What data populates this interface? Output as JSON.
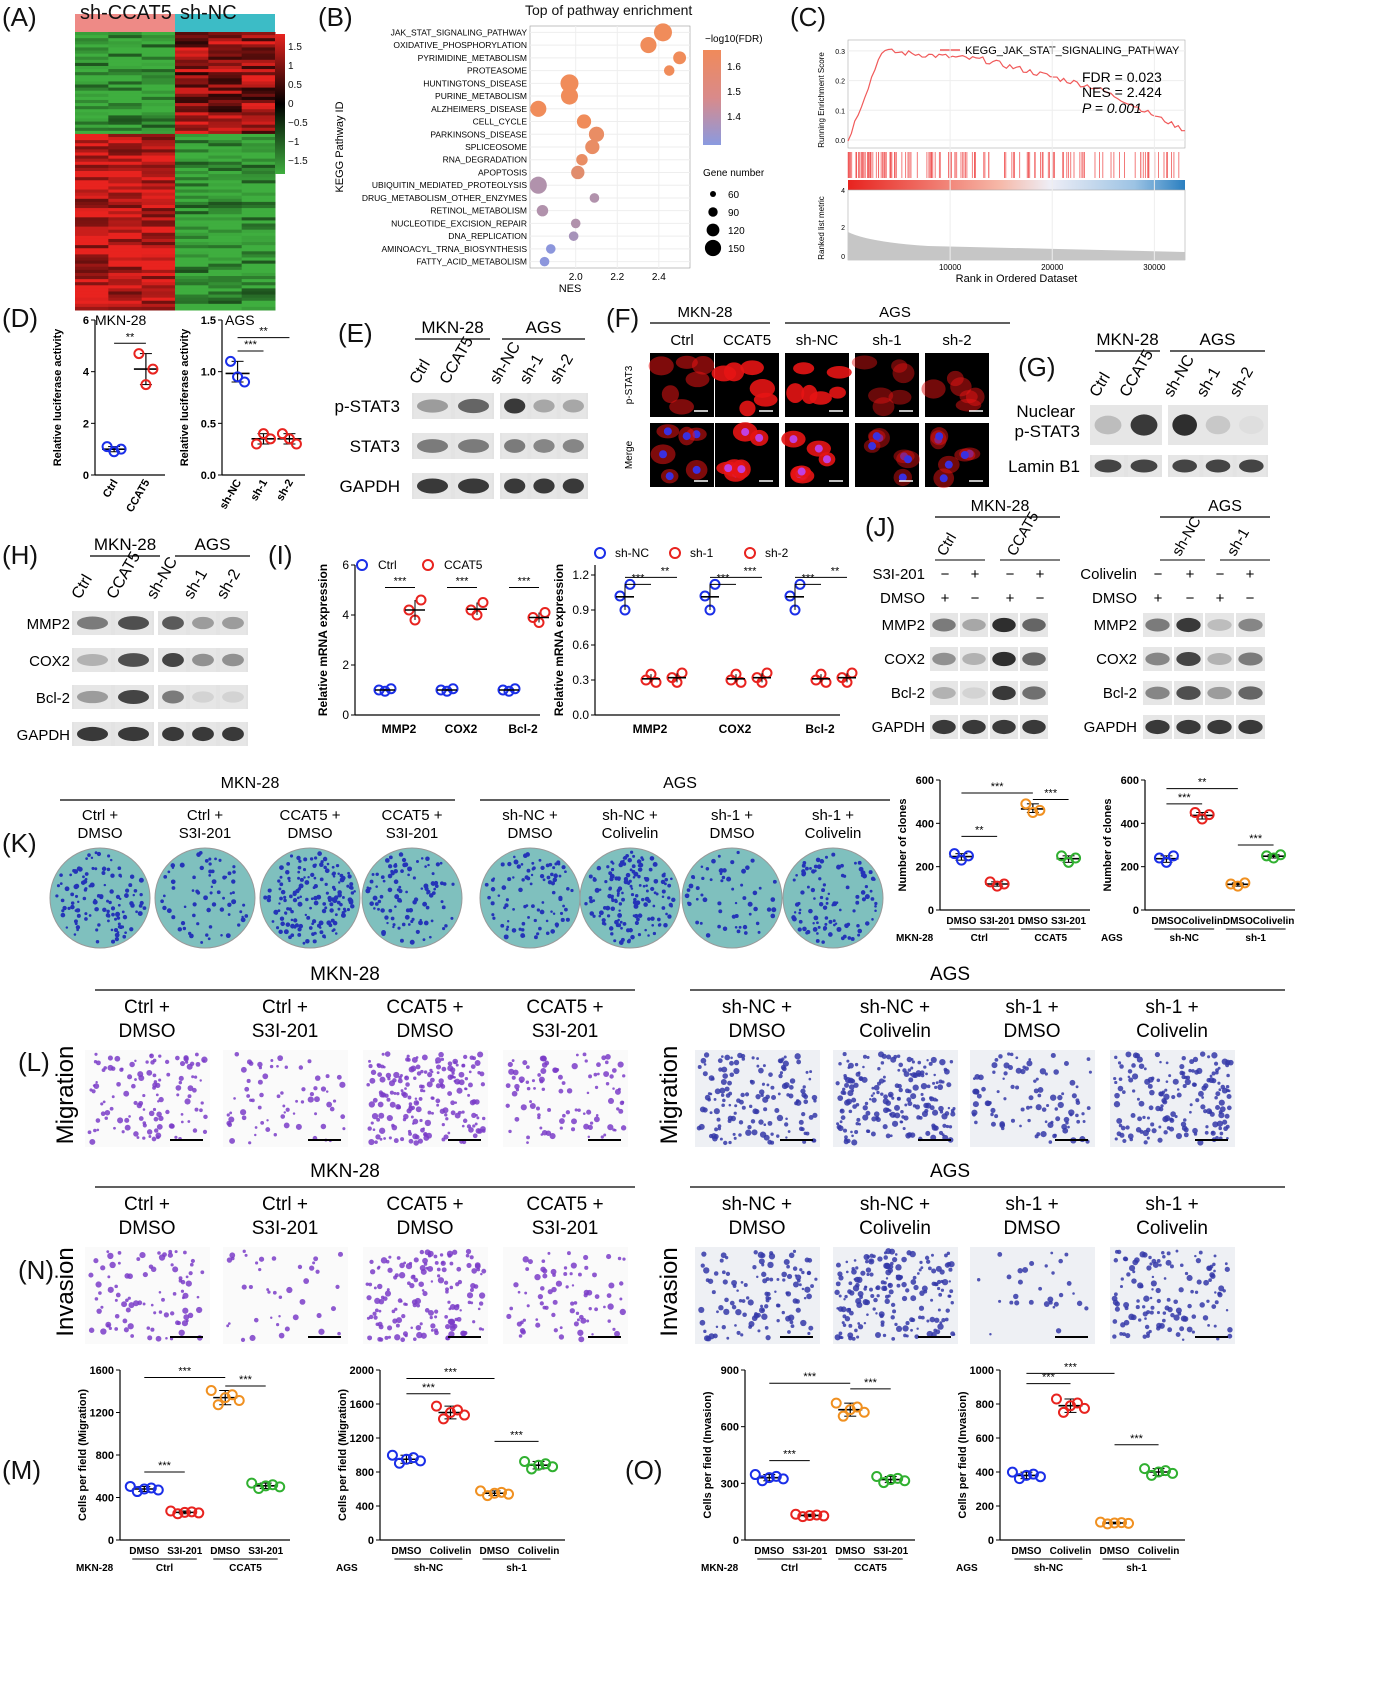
{
  "panels": {
    "A": "(A)",
    "B": "(B)",
    "C": "(C)",
    "D": "(D)",
    "E": "(E)",
    "F": "(F)",
    "G": "(G)",
    "H": "(H)",
    "I": "(I)",
    "J": "(J)",
    "K": "(K)",
    "L": "(L)",
    "M": "(M)",
    "N": "(N)",
    "O": "(O)"
  },
  "heatmap": {
    "groups": [
      "sh-CCAT5",
      "sh-NC"
    ],
    "scale": [
      "1.5",
      "1",
      "0.5",
      "0",
      "−0.5",
      "−1",
      "−1.5"
    ],
    "colors": {
      "high": "#e8231f",
      "mid": "#000000",
      "low": "#3fae3f",
      "g1": "#ee8a86",
      "g2": "#3cbcc6"
    }
  },
  "pathway": {
    "title": "Top of pathway enrichment",
    "ylabel": "KEGG Pathway ID",
    "xlabel": "NES",
    "xticks": [
      "2.0",
      "2.2",
      "2.4"
    ],
    "legend_fdr_title": "−log10(FDR)",
    "legend_fdr_ticks": [
      "1.6",
      "1.5",
      "1.4"
    ],
    "legend_size_title": "Gene number",
    "legend_size_ticks": [
      "60",
      "90",
      "120",
      "150"
    ]
  },
  "gsea": {
    "legend": "KEGG_JAK_STAT_SIGNALING_PATHWAY",
    "fdr": "FDR = 0.023",
    "nes": "NES = 2.424",
    "p": "P = 0.001",
    "ylabel1": "Running Enrichment Score",
    "ylabel2": "Ranked list metric",
    "xlabel": "Rank in Ordered Dataset",
    "xticks": [
      "10000",
      "20000",
      "30000"
    ],
    "yticks1": [
      "0.3",
      "0.2",
      "0.1",
      "0.0"
    ],
    "yticks2": [
      "4",
      "2",
      "0"
    ]
  },
  "luc": {
    "ylabel": "Relative luciferase activity",
    "left_title": "MKN-28",
    "right_title": "AGS",
    "left_groups": [
      "Ctrl",
      "CCAT5"
    ],
    "right_groups": [
      "sh-NC",
      "sh-1",
      "sh-2"
    ],
    "left_yticks": [
      "0",
      "2",
      "4",
      "6"
    ],
    "right_yticks": [
      "0.0",
      "0.5",
      "1.0",
      "1.5"
    ],
    "sig": [
      "**",
      "***",
      "**"
    ]
  },
  "blotE": {
    "cell1": "MKN-28",
    "cell2": "AGS",
    "lanes": [
      "Ctrl",
      "CCAT5",
      "sh-NC",
      "sh-1",
      "sh-2"
    ],
    "rows": [
      "p-STAT3",
      "STAT3",
      "GAPDH"
    ]
  },
  "ifF": {
    "cell1": "MKN-28",
    "cell2": "AGS",
    "cols": [
      "Ctrl",
      "CCAT5",
      "sh-NC",
      "sh-1",
      "sh-2"
    ],
    "rows": [
      "p-STAT3",
      "Merge"
    ]
  },
  "blotG": {
    "cell1": "MKN-28",
    "cell2": "AGS",
    "lanes": [
      "Ctrl",
      "CCAT5",
      "sh-NC",
      "sh-1",
      "sh-2"
    ],
    "rows": [
      "Nuclear p-STAT3",
      "Lamin B1"
    ]
  },
  "blotH": {
    "cell1": "MKN-28",
    "cell2": "AGS",
    "lanes": [
      "Ctrl",
      "CCAT5",
      "sh-NC",
      "sh-1",
      "sh-2"
    ],
    "rows": [
      "MMP2",
      "COX2",
      "Bcl-2",
      "GAPDH"
    ]
  },
  "qpcr": {
    "ylabel": "Relative mRNA expression",
    "genes": [
      "MMP2",
      "COX2",
      "Bcl-2"
    ],
    "left_legend": [
      "Ctrl",
      "CCAT5"
    ],
    "right_legend": [
      "sh-NC",
      "sh-1",
      "sh-2"
    ],
    "left_yticks": [
      "0",
      "2",
      "4",
      "6"
    ],
    "right_yticks": [
      "0.0",
      "0.3",
      "0.6",
      "0.9",
      "1.2"
    ],
    "sig": "***",
    "sig2": "**"
  },
  "blotJ": {
    "cell1": "MKN-28",
    "cell2": "AGS",
    "lanes1": [
      "Ctrl",
      "CCAT5"
    ],
    "lanes2": [
      "sh-NC",
      "sh-1"
    ],
    "treat1": "S3I-201",
    "treat2": "Colivelin",
    "dmso": "DMSO",
    "signs1": [
      "−",
      "+",
      "−",
      "+"
    ],
    "signs_dmso1": [
      "+",
      "−",
      "+",
      "−"
    ],
    "rows": [
      "MMP2",
      "COX2",
      "Bcl-2",
      "GAPDH"
    ]
  },
  "colony": {
    "cell1": "MKN-28",
    "cell2": "AGS",
    "labels1": [
      "Ctrl +\nDMSO",
      "Ctrl +\nS3I-201",
      "CCAT5 +\nDMSO",
      "CCAT5 +\nS3I-201"
    ],
    "labels2": [
      "sh-NC +\nDMSO",
      "sh-NC +\nColivelin",
      "sh-1 +\nDMSO",
      "sh-1 +\nColivelin"
    ]
  },
  "clones": {
    "ylabel": "Number of clones",
    "yticks": [
      "0",
      "200",
      "400",
      "600"
    ],
    "x1": [
      "DMSO",
      "S3I-201",
      "DMSO",
      "S3I-201"
    ],
    "g1": [
      "Ctrl",
      "CCAT5"
    ],
    "x2": [
      "DMSO",
      "Colivelin",
      "DMSO",
      "Colivelin"
    ],
    "g2": [
      "sh-NC",
      "sh-1"
    ],
    "cell1": "MKN-28",
    "cell2": "AGS"
  },
  "migration": {
    "row": "Migration",
    "cell1": "MKN-28",
    "cell2": "AGS"
  },
  "invasion": {
    "row": "Invasion",
    "cell1": "MKN-28",
    "cell2": "AGS"
  },
  "migM": {
    "ylabel": "Cells per field (Migration)",
    "yticks1": [
      "0",
      "400",
      "800",
      "1200",
      "1600"
    ],
    "yticks2": [
      "0",
      "400",
      "800",
      "1200",
      "1600",
      "2000"
    ]
  },
  "invO": {
    "ylabel": "Cells per field (Invasion)",
    "yticks1": [
      "0",
      "300",
      "600",
      "900"
    ],
    "yticks2": [
      "0",
      "200",
      "400",
      "600",
      "800",
      "1000"
    ]
  },
  "chart_data": [
    {
      "type": "scatter",
      "title": "Top of pathway enrichment",
      "xlabel": "NES",
      "ylabel": "KEGG Pathway ID",
      "categories": [
        "JAK_STAT_SIGNALING_PATHWAY",
        "OXIDATIVE_PHOSPHORYLATION",
        "PYRIMIDINE_METABOLISM",
        "PROTEASOME",
        "HUNTINGTONS_DISEASE",
        "PURINE_METABOLISM",
        "ALZHEIMERS_DISEASE",
        "CELL_CYCLE",
        "PARKINSONS_DISEASE",
        "SPLICEOSOME",
        "RNA_DEGRADATION",
        "APOPTOSIS",
        "UBIQUITIN_MEDIATED_PROTEOLYSIS",
        "DRUG_METABOLISM_OTHER_ENZYMES",
        "RETINOL_METABOLISM",
        "NUCLEOTIDE_EXCISION_REPAIR",
        "DNA_REPLICATION",
        "AMINOACYL_TRNA_BIOSYNTHESIS",
        "FATTY_ACID_METABOLISM"
      ],
      "nes": [
        2.42,
        2.35,
        2.5,
        2.45,
        1.97,
        1.97,
        1.82,
        2.04,
        2.1,
        2.08,
        2.03,
        2.01,
        1.82,
        2.09,
        1.84,
        2.0,
        1.99,
        1.88,
        1.85
      ],
      "fdr": [
        1.62,
        1.62,
        1.62,
        1.62,
        1.62,
        1.62,
        1.62,
        1.62,
        1.6,
        1.6,
        1.6,
        1.58,
        1.45,
        1.45,
        1.45,
        1.45,
        1.42,
        1.35,
        1.35
      ],
      "genes": [
        150,
        130,
        95,
        70,
        150,
        140,
        130,
        110,
        120,
        110,
        80,
        100,
        140,
        60,
        80,
        60,
        60,
        60,
        60
      ]
    },
    {
      "type": "scatter",
      "title": "MKN-28 luciferase",
      "categories": [
        "Ctrl",
        "CCAT5"
      ],
      "values": [
        [
          1.1,
          0.9,
          1.0
        ],
        [
          4.7,
          3.5,
          4.1
        ]
      ],
      "ylim": [
        0,
        6
      ]
    },
    {
      "type": "scatter",
      "title": "AGS luciferase",
      "categories": [
        "sh-NC",
        "sh-1",
        "sh-2"
      ],
      "values": [
        [
          1.1,
          0.95,
          0.9
        ],
        [
          0.3,
          0.4,
          0.35
        ],
        [
          0.4,
          0.35,
          0.3
        ]
      ],
      "ylim": [
        0,
        1.5
      ]
    },
    {
      "type": "scatter",
      "title": "Number of clones MKN-28",
      "categories": [
        "DMSO Ctrl",
        "S3I-201 Ctrl",
        "DMSO CCAT5",
        "S3I-201 CCAT5"
      ],
      "values": [
        [
          260,
          230,
          250
        ],
        [
          130,
          110,
          120
        ],
        [
          490,
          450,
          460
        ],
        [
          250,
          220,
          240
        ]
      ],
      "ylim": [
        0,
        600
      ]
    },
    {
      "type": "scatter",
      "title": "Number of clones AGS",
      "categories": [
        "DMSO sh-NC",
        "Colivelin sh-NC",
        "DMSO sh-1",
        "Colivelin sh-1"
      ],
      "values": [
        [
          240,
          220,
          250
        ],
        [
          450,
          420,
          440
        ],
        [
          120,
          110,
          125
        ],
        [
          250,
          240,
          255
        ]
      ],
      "ylim": [
        0,
        600
      ]
    },
    {
      "type": "scatter",
      "title": "Migration MKN-28",
      "categories": [
        "DMSO Ctrl",
        "S3I-201 Ctrl",
        "DMSO CCAT5",
        "S3I-201 CCAT5"
      ],
      "means": [
        480,
        260,
        1340,
        510
      ],
      "ylim": [
        0,
        1600
      ]
    },
    {
      "type": "scatter",
      "title": "Migration AGS",
      "categories": [
        "DMSO sh-NC",
        "Colivelin sh-NC",
        "DMSO sh-1",
        "Colivelin sh-1"
      ],
      "means": [
        950,
        1500,
        550,
        880
      ],
      "ylim": [
        0,
        2000
      ]
    },
    {
      "type": "scatter",
      "title": "Invasion MKN-28",
      "categories": [
        "DMSO Ctrl",
        "S3I-201 Ctrl",
        "DMSO CCAT5",
        "S3I-201 CCAT5"
      ],
      "means": [
        330,
        130,
        690,
        320
      ],
      "ylim": [
        0,
        900
      ]
    },
    {
      "type": "scatter",
      "title": "Invasion AGS",
      "categories": [
        "DMSO sh-NC",
        "Colivelin sh-NC",
        "DMSO sh-1",
        "Colivelin sh-1"
      ],
      "means": [
        380,
        790,
        100,
        400
      ],
      "ylim": [
        0,
        1000
      ]
    }
  ]
}
